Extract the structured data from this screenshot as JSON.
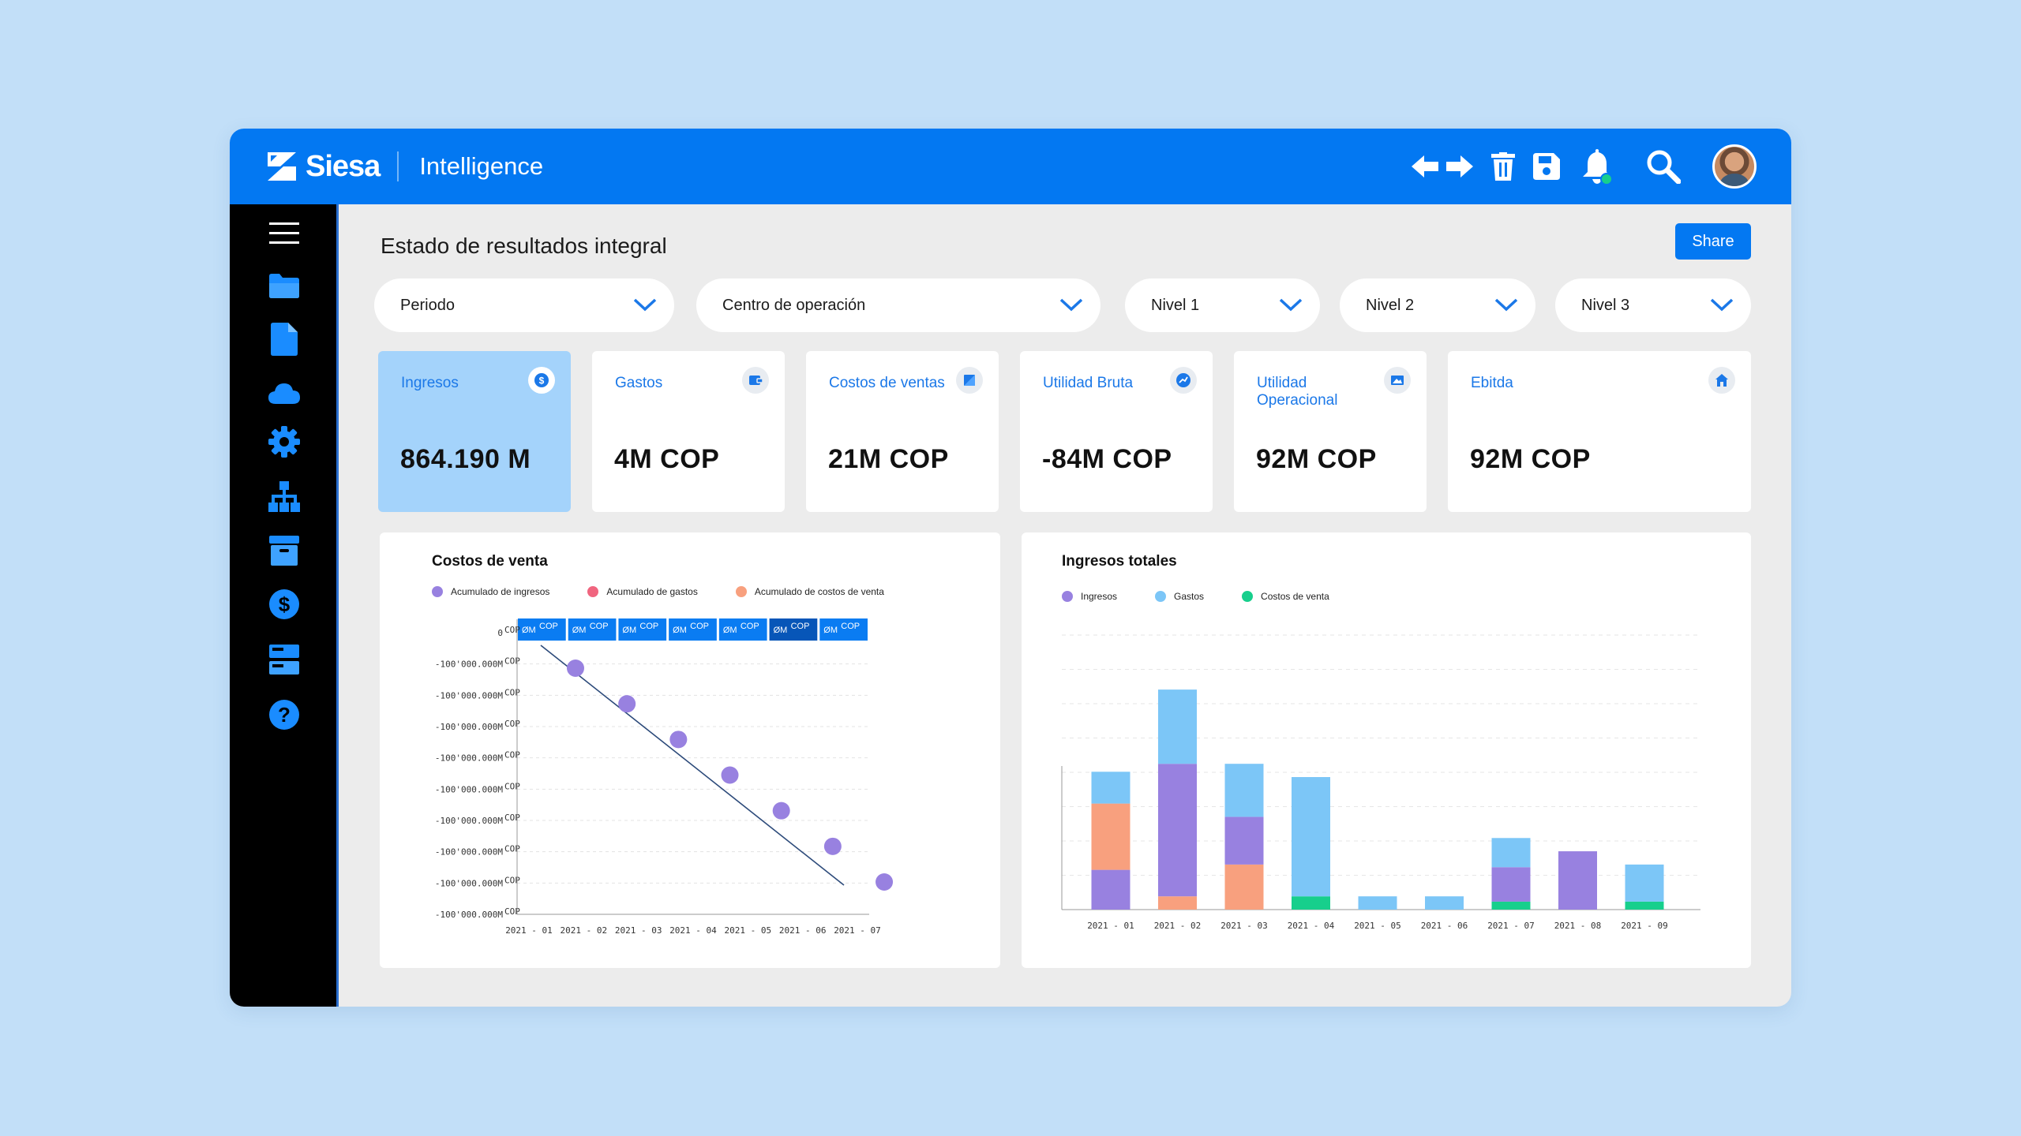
{
  "header": {
    "brand": "Siesa",
    "app": "Intelligence",
    "icons": [
      "arrows-icon",
      "trash-icon",
      "save-icon",
      "bell-icon",
      "search-icon"
    ]
  },
  "sidebar": {
    "items": [
      "menu-icon",
      "folder-icon",
      "document-icon",
      "cloud-icon",
      "gear-icon",
      "hierarchy-icon",
      "archive-icon",
      "dollar-icon",
      "cards-icon",
      "help-icon"
    ]
  },
  "page": {
    "title": "Estado de resultados integral",
    "share_label": "Share"
  },
  "filters": [
    {
      "label": "Periodo"
    },
    {
      "label": "Centro de operación"
    },
    {
      "label": "Nivel 1"
    },
    {
      "label": "Nivel 2"
    },
    {
      "label": "Nivel 3"
    }
  ],
  "kpis": [
    {
      "label": "Ingresos",
      "value": "864.190 M",
      "active": true
    },
    {
      "label": "Gastos",
      "value": "4M COP"
    },
    {
      "label": "Costos de ventas",
      "value": "21M COP"
    },
    {
      "label": "Utilidad Bruta",
      "value": "-84M COP"
    },
    {
      "label": "Utilidad Operacional",
      "value": "92M COP"
    },
    {
      "label": "Ebitda",
      "value": "92M COP"
    }
  ],
  "colors": {
    "primary": "#0378f2",
    "ingresos": "#9881e0",
    "gastos": "#f0657f",
    "costos": "#f8a07e",
    "gastos_bar": "#7cc6f7",
    "costos_bar": "#17cf8c"
  },
  "chart_data": [
    {
      "type": "line",
      "title": "Costos de venta",
      "legend": [
        "Acumulado de ingresos",
        "Acumulado de gastos",
        "Acumulado de costos de venta"
      ],
      "categories": [
        "2021 - 01",
        "2021 - 02",
        "2021 - 03",
        "2021 - 04",
        "2021 - 05",
        "2021 - 06",
        "2021 - 07"
      ],
      "y_tick_labels": [
        "0",
        "-100'000.000M",
        "-100'000.000M",
        "-100'000.000M",
        "-100'000.000M",
        "-100'000.000M",
        "-100'000.000M",
        "-100'000.000M",
        "-100'000.000M",
        "-100'000.000M"
      ],
      "y_tick_unit": "COP",
      "top_tags": [
        {
          "label": "ØM",
          "unit": "COP"
        },
        {
          "label": "ØM",
          "unit": "COP"
        },
        {
          "label": "ØM",
          "unit": "COP"
        },
        {
          "label": "ØM",
          "unit": "COP"
        },
        {
          "label": "ØM",
          "unit": "COP"
        },
        {
          "label": "ØM",
          "unit": "COP",
          "highlight": true
        },
        {
          "label": "ØM",
          "unit": "COP"
        }
      ],
      "series": [
        {
          "name": "Acumulado de ingresos",
          "points": [
            1,
            2,
            3,
            4,
            5,
            6,
            7
          ]
        }
      ]
    },
    {
      "type": "bar",
      "stacked": true,
      "title": "Ingresos totales",
      "legend": [
        "Ingresos",
        "Gastos",
        "Costos de venta"
      ],
      "categories": [
        "2021 - 01",
        "2021 - 02",
        "2021 - 03",
        "2021 - 04",
        "2021 - 05",
        "2021 - 06",
        "2021 - 07",
        "2021 - 08",
        "2021 - 09"
      ],
      "ylim": [
        0,
        100
      ],
      "grid": true,
      "segments": [
        {
          "cat": 0,
          "stack": [
            {
              "k": "ingresos",
              "v": 15
            },
            {
              "k": "costos",
              "v": 25
            },
            {
              "k": "gastos",
              "v": 12
            }
          ]
        },
        {
          "cat": 1,
          "stack": [
            {
              "k": "costos",
              "v": 5
            },
            {
              "k": "ingresos",
              "v": 50
            },
            {
              "k": "gastos",
              "v": 28
            }
          ]
        },
        {
          "cat": 2,
          "stack": [
            {
              "k": "costos",
              "v": 17
            },
            {
              "k": "ingresos",
              "v": 18
            },
            {
              "k": "gastos",
              "v": 20
            }
          ]
        },
        {
          "cat": 3,
          "stack": [
            {
              "k": "costos_bar",
              "v": 5
            },
            {
              "k": "gastos",
              "v": 45
            }
          ]
        },
        {
          "cat": 4,
          "stack": [
            {
              "k": "gastos",
              "v": 5
            }
          ]
        },
        {
          "cat": 5,
          "stack": [
            {
              "k": "gastos",
              "v": 5
            }
          ]
        },
        {
          "cat": 6,
          "stack": [
            {
              "k": "costos_bar",
              "v": 3
            },
            {
              "k": "ingresos",
              "v": 13
            },
            {
              "k": "gastos",
              "v": 11
            }
          ]
        },
        {
          "cat": 7,
          "stack": [
            {
              "k": "ingresos",
              "v": 22
            }
          ]
        },
        {
          "cat": 8,
          "stack": [
            {
              "k": "costos_bar",
              "v": 3
            },
            {
              "k": "gastos",
              "v": 14
            }
          ]
        }
      ]
    }
  ]
}
